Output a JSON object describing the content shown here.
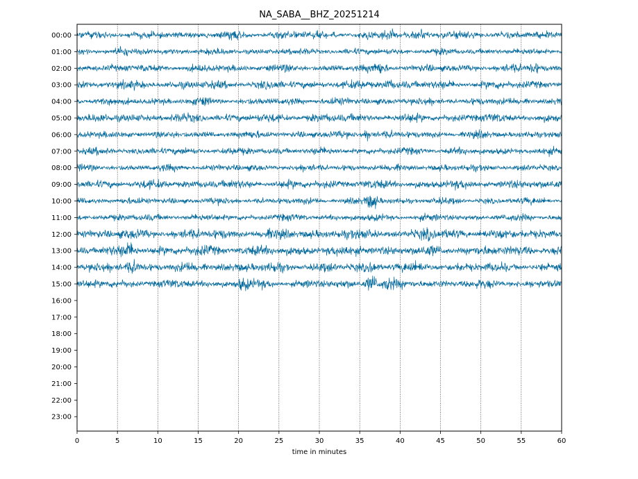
{
  "chart_data": {
    "type": "line",
    "title": "NA_SABA__BHZ_20251214",
    "xlabel": "time in minutes",
    "ylabel": "",
    "xlim": [
      0,
      60
    ],
    "x_ticks": [
      "0",
      "5",
      "10",
      "15",
      "20",
      "25",
      "30",
      "35",
      "40",
      "45",
      "50",
      "55",
      "60"
    ],
    "hour_labels": [
      "00:00",
      "01:00",
      "02:00",
      "03:00",
      "04:00",
      "05:00",
      "06:00",
      "07:00",
      "08:00",
      "09:00",
      "10:00",
      "11:00",
      "12:00",
      "13:00",
      "14:00",
      "15:00",
      "16:00",
      "17:00",
      "18:00",
      "19:00",
      "20:00",
      "21:00",
      "22:00",
      "23:00"
    ],
    "rows_with_data": 16,
    "vertical_grid": "dotted",
    "trace_color": "#00679a",
    "events": [
      {
        "hour": "00:00",
        "minute": 39,
        "level": 1.6
      },
      {
        "hour": "00:00",
        "minute": 42.5,
        "level": 1.8
      },
      {
        "hour": "01:00",
        "minute": 5.5,
        "level": 1.8
      },
      {
        "hour": "02:00",
        "minute": 37.5,
        "level": 1.8
      },
      {
        "hour": "02:00",
        "minute": 56.5,
        "level": 2.0
      },
      {
        "hour": "03:00",
        "minute": 38.5,
        "level": 1.8
      },
      {
        "hour": "06:00",
        "minute": 36,
        "level": 2.0
      },
      {
        "hour": "10:00",
        "minute": 36.5,
        "level": 2.4
      },
      {
        "hour": "12:00",
        "minute": 43.5,
        "level": 1.8
      },
      {
        "hour": "13:00",
        "minute": 6.5,
        "level": 2.2
      },
      {
        "hour": "14:00",
        "minute": 7,
        "level": 2.0
      },
      {
        "hour": "14:00",
        "minute": 36.5,
        "level": 1.8
      },
      {
        "hour": "15:00",
        "minute": 20.5,
        "level": 2.0
      },
      {
        "hour": "15:00",
        "minute": 36.5,
        "level": 2.8
      },
      {
        "hour": "15:00",
        "minute": 38.5,
        "level": 2.0
      }
    ]
  }
}
